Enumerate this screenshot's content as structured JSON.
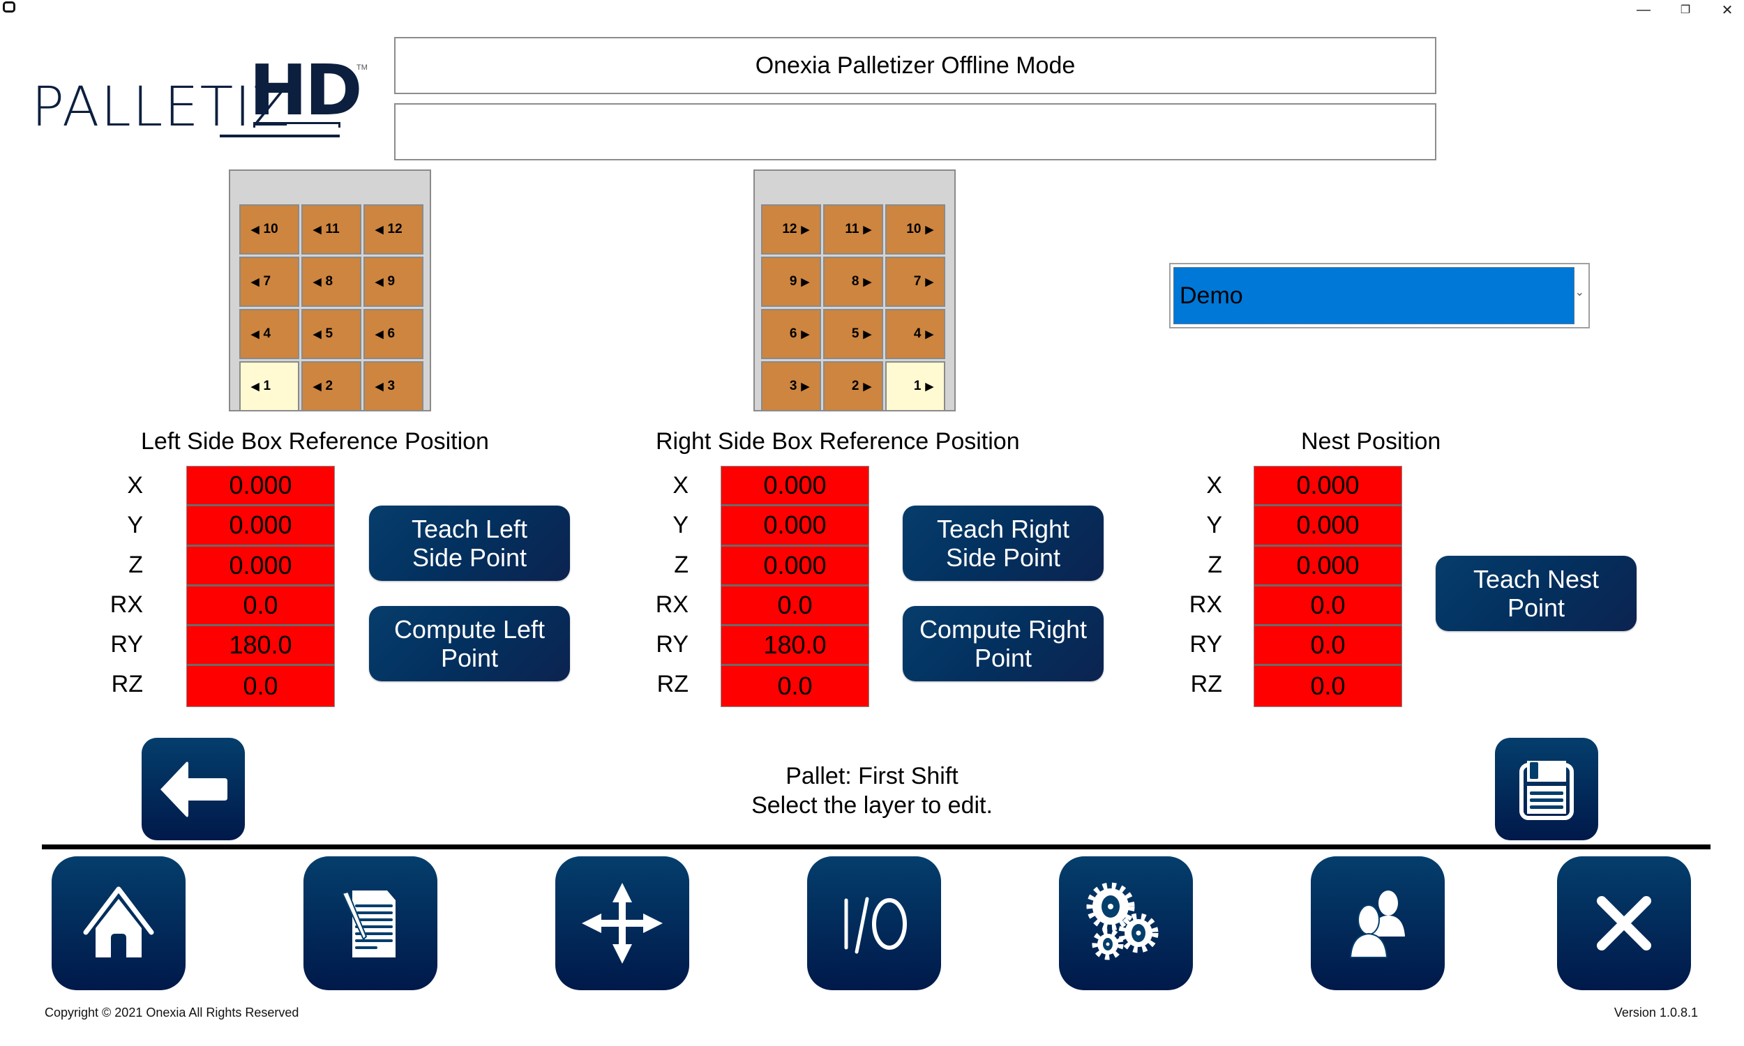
{
  "window": {
    "controls": {
      "minimize": "—",
      "restore": "❐",
      "close": "✕"
    }
  },
  "logo": {
    "text": "PALLETIZ",
    "hd": "HD",
    "tm": "TM"
  },
  "header": {
    "title": "Onexia Palletizer Offline Mode",
    "message": ""
  },
  "left_grid": {
    "rows": [
      [
        {
          "n": "10",
          "sel": false
        },
        {
          "n": "11",
          "sel": false
        },
        {
          "n": "12",
          "sel": false
        }
      ],
      [
        {
          "n": "7",
          "sel": false
        },
        {
          "n": "8",
          "sel": false
        },
        {
          "n": "9",
          "sel": false
        }
      ],
      [
        {
          "n": "4",
          "sel": false
        },
        {
          "n": "5",
          "sel": false
        },
        {
          "n": "6",
          "sel": false
        }
      ],
      [
        {
          "n": "1",
          "sel": true
        },
        {
          "n": "2",
          "sel": false
        },
        {
          "n": "3",
          "sel": false
        }
      ]
    ],
    "arrow": "◀"
  },
  "right_grid": {
    "rows": [
      [
        {
          "n": "12",
          "sel": false
        },
        {
          "n": "11",
          "sel": false
        },
        {
          "n": "10",
          "sel": false
        }
      ],
      [
        {
          "n": "9",
          "sel": false
        },
        {
          "n": "8",
          "sel": false
        },
        {
          "n": "7",
          "sel": false
        }
      ],
      [
        {
          "n": "6",
          "sel": false
        },
        {
          "n": "5",
          "sel": false
        },
        {
          "n": "4",
          "sel": false
        }
      ],
      [
        {
          "n": "3",
          "sel": false
        },
        {
          "n": "2",
          "sel": false
        },
        {
          "n": "1",
          "sel": true
        }
      ]
    ],
    "arrow": "▶"
  },
  "colors": {
    "tile": "#cd853f",
    "tile_selected": "#fffad2",
    "value_bg": "#ff0000",
    "button": "#03305e",
    "dropdown_bg": "#0078d7"
  },
  "dropdown": {
    "selected": "Demo",
    "chevron": "⌄"
  },
  "axes": [
    "X",
    "Y",
    "Z",
    "RX",
    "RY",
    "RZ"
  ],
  "sections": {
    "left": {
      "title": "Left Side Box Reference Position",
      "values": [
        "0.000",
        "0.000",
        "0.000",
        "0.0",
        "180.0",
        "0.0"
      ],
      "teach_label": "Teach Left\nSide Point",
      "compute_label": "Compute Left\nPoint"
    },
    "right": {
      "title": "Right Side Box Reference Position",
      "values": [
        "0.000",
        "0.000",
        "0.000",
        "0.0",
        "180.0",
        "0.0"
      ],
      "teach_label": "Teach Right\nSide Point",
      "compute_label": "Compute Right\nPoint"
    },
    "nest": {
      "title": "Nest Position",
      "values": [
        "0.000",
        "0.000",
        "0.000",
        "0.0",
        "0.0",
        "0.0"
      ],
      "teach_label": "Teach Nest\nPoint"
    }
  },
  "status": {
    "line1": "Pallet: First Shift",
    "line2": "Select the layer to edit."
  },
  "nav": {
    "items": [
      {
        "name": "home",
        "icon": "home-icon"
      },
      {
        "name": "recipe",
        "icon": "document-edit-icon"
      },
      {
        "name": "jog",
        "icon": "move-arrows-icon"
      },
      {
        "name": "io",
        "icon": "io-icon",
        "label": "I/O"
      },
      {
        "name": "settings",
        "icon": "gears-icon"
      },
      {
        "name": "users",
        "icon": "users-icon"
      },
      {
        "name": "exit",
        "icon": "close-icon"
      }
    ]
  },
  "footer": {
    "copyright": "Copyright © 2021 Onexia All Rights Reserved",
    "version": "Version 1.0.8.1"
  }
}
